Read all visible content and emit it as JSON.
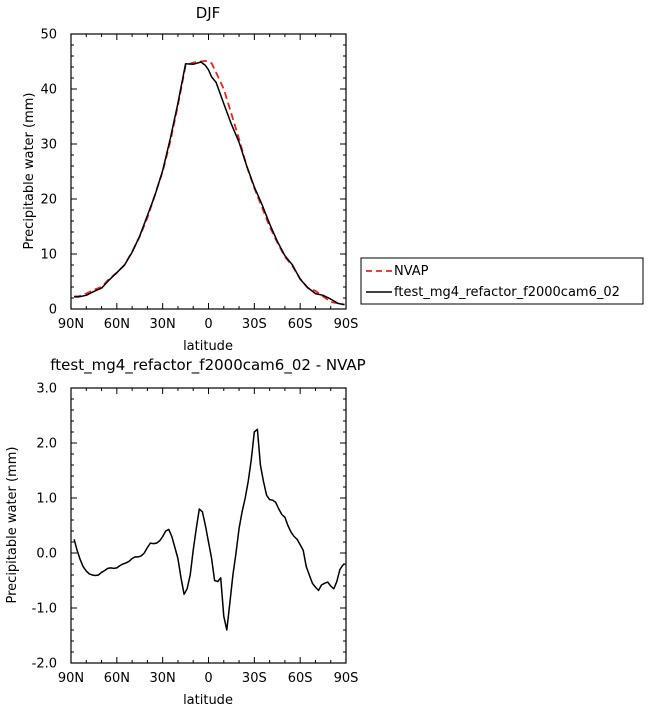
{
  "chart_data": [
    {
      "type": "line",
      "title": "DJF",
      "xlabel": "latitude",
      "ylabel": "Precipitable water (mm)",
      "xlim": [
        90,
        -90
      ],
      "ylim": [
        0,
        50
      ],
      "x_ticks": [
        90,
        60,
        30,
        0,
        -30,
        -60,
        -90
      ],
      "x_tick_labels": [
        "90N",
        "60N",
        "30N",
        "0",
        "30S",
        "60S",
        "90S"
      ],
      "y_ticks": [
        0,
        10,
        20,
        30,
        40,
        50
      ],
      "y_tick_labels": [
        "0",
        "10",
        "20",
        "30",
        "40",
        "50"
      ],
      "legend_position": "right",
      "series": [
        {
          "name": "NVAP",
          "color": "#e8251f",
          "dash": "dashed",
          "x": [
            88,
            85,
            80,
            75,
            70,
            65,
            60,
            55,
            50,
            45,
            40,
            35,
            30,
            25,
            20,
            15,
            10,
            5,
            2,
            0,
            -2,
            -5,
            -10,
            -15,
            -20,
            -25,
            -30,
            -35,
            -40,
            -45,
            -50,
            -55,
            -60,
            -65,
            -70,
            -75,
            -80,
            -85,
            -89
          ],
          "y": [
            2.3,
            2.3,
            2.8,
            3.5,
            4.0,
            5.5,
            6.6,
            8.0,
            10.4,
            13.2,
            16.6,
            20.8,
            25.0,
            30.5,
            37.0,
            44.3,
            44.8,
            45.0,
            45.1,
            45.0,
            44.7,
            43.0,
            40.0,
            35.5,
            30.9,
            26.0,
            22.0,
            18.5,
            15.0,
            12.1,
            9.5,
            7.8,
            5.5,
            3.8,
            3.3,
            2.3,
            1.3,
            1.0,
            0.8
          ]
        },
        {
          "name": "ftest_mg4_refactor_f2000cam6_02",
          "color": "#000000",
          "dash": "solid",
          "x": [
            88,
            85,
            80,
            75,
            70,
            65,
            60,
            55,
            50,
            45,
            40,
            35,
            30,
            25,
            20,
            15,
            10,
            5,
            2,
            0,
            -2,
            -5,
            -10,
            -15,
            -20,
            -25,
            -30,
            -35,
            -40,
            -45,
            -50,
            -55,
            -60,
            -65,
            -70,
            -75,
            -80,
            -85,
            -89
          ],
          "y": [
            2.2,
            2.2,
            2.5,
            3.2,
            3.8,
            5.3,
            6.6,
            8.0,
            10.3,
            13.3,
            17.0,
            20.7,
            25.2,
            31.0,
            37.4,
            44.6,
            44.5,
            44.9,
            44.3,
            43.5,
            42.2,
            41.2,
            37.3,
            33.6,
            30.3,
            26.0,
            22.2,
            19.0,
            15.5,
            12.3,
            9.7,
            8.0,
            5.4,
            3.9,
            2.8,
            2.5,
            1.8,
            1.0,
            0.8
          ]
        }
      ]
    },
    {
      "type": "line",
      "title": "ftest_mg4_refactor_f2000cam6_02 - NVAP",
      "xlabel": "latitude",
      "ylabel": "Precipitable water (mm)",
      "xlim": [
        90,
        -90
      ],
      "ylim": [
        -2.0,
        3.0
      ],
      "x_ticks": [
        90,
        60,
        30,
        0,
        -30,
        -60,
        -90
      ],
      "x_tick_labels": [
        "90N",
        "60N",
        "30N",
        "0",
        "30S",
        "60S",
        "90S"
      ],
      "y_ticks": [
        -2.0,
        -1.0,
        0.0,
        1.0,
        2.0,
        3.0
      ],
      "y_tick_labels": [
        "-2.0",
        "-1.0",
        "0.0",
        "1.0",
        "2.0",
        "3.0"
      ],
      "series": [
        {
          "color": "#000000",
          "dash": "solid",
          "x": [
            88,
            86,
            84,
            82,
            80,
            78,
            76,
            74,
            72,
            70,
            68,
            66,
            64,
            62,
            60,
            58,
            56,
            54,
            52,
            50,
            48,
            46,
            44,
            42,
            40,
            38,
            36,
            34,
            32,
            30,
            28,
            26,
            24,
            22,
            20,
            18,
            16,
            14,
            12,
            10,
            8,
            6,
            4,
            2,
            0,
            -2,
            -4,
            -6,
            -8,
            -10,
            -12,
            -14,
            -16,
            -18,
            -20,
            -22,
            -24,
            -26,
            -28,
            -30,
            -32,
            -34,
            -36,
            -38,
            -40,
            -42,
            -44,
            -46,
            -48,
            -50,
            -52,
            -54,
            -56,
            -58,
            -60,
            -62,
            -64,
            -66,
            -68,
            -70,
            -72,
            -74,
            -76,
            -78,
            -80,
            -82,
            -84,
            -86,
            -88,
            -89
          ],
          "y": [
            0.25,
            0.05,
            -0.12,
            -0.25,
            -0.33,
            -0.38,
            -0.4,
            -0.41,
            -0.4,
            -0.35,
            -0.32,
            -0.28,
            -0.27,
            -0.28,
            -0.27,
            -0.23,
            -0.2,
            -0.18,
            -0.15,
            -0.1,
            -0.07,
            -0.07,
            -0.05,
            0.0,
            0.1,
            0.18,
            0.17,
            0.18,
            0.22,
            0.3,
            0.4,
            0.43,
            0.3,
            0.1,
            -0.1,
            -0.45,
            -0.75,
            -0.65,
            -0.4,
            0.05,
            0.45,
            0.8,
            0.75,
            0.5,
            0.2,
            -0.1,
            -0.5,
            -0.52,
            -0.45,
            -1.15,
            -1.4,
            -0.9,
            -0.4,
            0.0,
            0.45,
            0.75,
            1.0,
            1.3,
            1.7,
            2.2,
            2.25,
            1.6,
            1.3,
            1.05,
            0.97,
            0.96,
            0.92,
            0.8,
            0.7,
            0.65,
            0.5,
            0.38,
            0.3,
            0.25,
            0.15,
            0.05,
            -0.25,
            -0.4,
            -0.55,
            -0.62,
            -0.68,
            -0.58,
            -0.55,
            -0.53,
            -0.6,
            -0.65,
            -0.52,
            -0.3,
            -0.22,
            -0.2
          ]
        }
      ]
    }
  ]
}
